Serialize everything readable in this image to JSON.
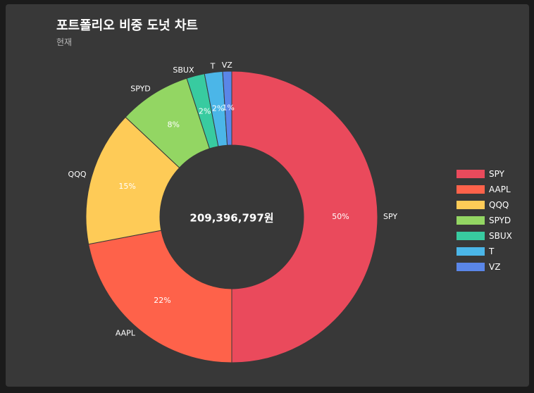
{
  "chart_data": {
    "type": "pie",
    "title": "포트폴리오 비중 도넛 차트",
    "subtitle": "현재",
    "center_label": "209,396,797원",
    "categories": [
      "SPY",
      "AAPL",
      "QQQ",
      "SPYD",
      "SBUX",
      "T",
      "VZ"
    ],
    "values": [
      50,
      22,
      15,
      8,
      2,
      2,
      1
    ],
    "percent_labels": [
      "50%",
      "22%",
      "15%",
      "8%",
      "2%",
      "2%",
      "1%"
    ],
    "colors": [
      "#EA4A5C",
      "#FE624A",
      "#FECB57",
      "#93D663",
      "#38CBA0",
      "#4BB6E8",
      "#5A86E8"
    ],
    "legend_position": "right"
  },
  "legend": {
    "items": [
      {
        "label": "SPY",
        "color": "#EA4A5C"
      },
      {
        "label": "AAPL",
        "color": "#FE624A"
      },
      {
        "label": "QQQ",
        "color": "#FECB57"
      },
      {
        "label": "SPYD",
        "color": "#93D663"
      },
      {
        "label": "SBUX",
        "color": "#38CBA0"
      },
      {
        "label": "T",
        "color": "#4BB6E8"
      },
      {
        "label": "VZ",
        "color": "#5A86E8"
      }
    ]
  }
}
